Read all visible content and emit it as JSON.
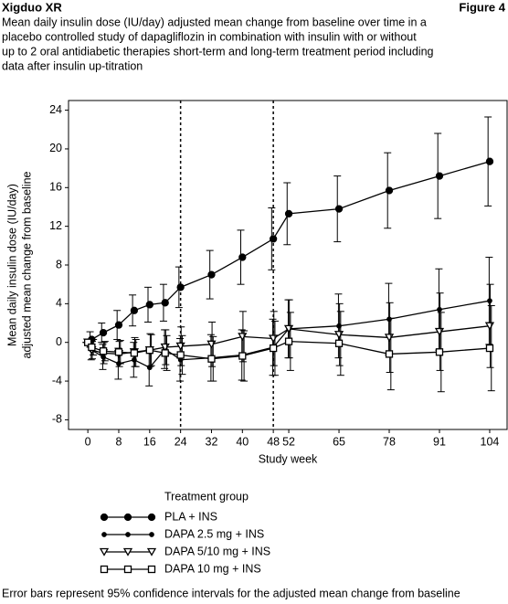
{
  "header": {
    "left": "Xigduo XR",
    "right": "Figure 4"
  },
  "chart_data": {
    "type": "line",
    "title_lines": [
      "Mean daily insulin dose (IU/day) adjusted mean change from baseline over time in a",
      "placebo controlled study of dapagliflozin in combination with insulin with or without",
      "up to 2 oral antidiabetic therapies short-term and long-term treatment period including",
      "data after insulin up-titration"
    ],
    "ylabel": [
      "Mean daily insulin dose (IU/day)",
      "adjusted mean change from baseline"
    ],
    "xlabel": "Study week",
    "legend_title": "Treatment group",
    "footnote": "Error bars represent 95% confidence intervals for the adjusted mean change from baseline",
    "x": [
      0,
      1,
      4,
      8,
      12,
      16,
      20,
      24,
      32,
      40,
      48,
      52,
      65,
      78,
      91,
      104
    ],
    "xlim": [
      -5,
      108.5
    ],
    "xticks": [
      0,
      8,
      16,
      24,
      32,
      40,
      48,
      52,
      65,
      78,
      91,
      104
    ],
    "ylim": [
      -9,
      25
    ],
    "yticks": [
      -8,
      -4,
      0,
      4,
      8,
      12,
      16,
      20,
      24
    ],
    "vlines": [
      24,
      48
    ],
    "series": [
      {
        "name": "PLA + INS",
        "color": "#000000",
        "marker": "circle-large",
        "values": [
          0,
          0.3,
          1.0,
          1.8,
          3.3,
          3.9,
          4.1,
          5.7,
          7.0,
          8.8,
          10.7,
          13.3,
          13.8,
          15.7,
          17.2,
          18.7
        ],
        "errors": [
          0,
          0.8,
          1.0,
          1.5,
          1.6,
          1.8,
          1.9,
          2.1,
          2.5,
          2.8,
          3.2,
          3.2,
          3.4,
          3.9,
          4.4,
          4.6
        ]
      },
      {
        "name": "DAPA 2.5 mg + INS",
        "color": "#000000",
        "marker": "circle-small",
        "values": [
          0,
          -0.8,
          -1.5,
          -2.2,
          -1.8,
          -2.6,
          -0.7,
          -1.8,
          -1.6,
          -1.3,
          -0.5,
          1.4,
          1.7,
          2.4,
          3.4,
          4.3
        ],
        "errors": [
          0,
          1.0,
          1.3,
          1.6,
          1.8,
          1.9,
          2.0,
          2.2,
          2.4,
          2.6,
          2.9,
          3.0,
          3.3,
          3.7,
          4.2,
          4.5
        ]
      },
      {
        "name": "DAPA 5/10 mg + INS",
        "color": "#000000",
        "marker": "triangle-down",
        "values": [
          0,
          -0.8,
          -1.1,
          -1.2,
          -1.0,
          -0.8,
          -0.5,
          -0.4,
          -0.2,
          0.6,
          0.4,
          1.4,
          0.8,
          0.5,
          1.1,
          1.7
        ],
        "errors": [
          0,
          0.9,
          1.1,
          1.3,
          1.5,
          1.7,
          1.8,
          2.0,
          2.3,
          2.6,
          2.8,
          3.0,
          3.2,
          3.6,
          4.0,
          4.3
        ]
      },
      {
        "name": "DAPA 10 mg + INS",
        "color": "#000000",
        "marker": "square",
        "values": [
          0,
          -0.5,
          -0.9,
          -1.0,
          -1.1,
          -0.8,
          -1.1,
          -1.3,
          -1.7,
          -1.4,
          -0.6,
          0.1,
          -0.1,
          -1.2,
          -1.0,
          -0.6
        ],
        "errors": [
          0,
          0.8,
          1.0,
          1.2,
          1.4,
          1.6,
          1.8,
          2.0,
          2.3,
          2.6,
          2.8,
          3.0,
          3.3,
          3.7,
          4.1,
          4.4
        ]
      }
    ]
  }
}
